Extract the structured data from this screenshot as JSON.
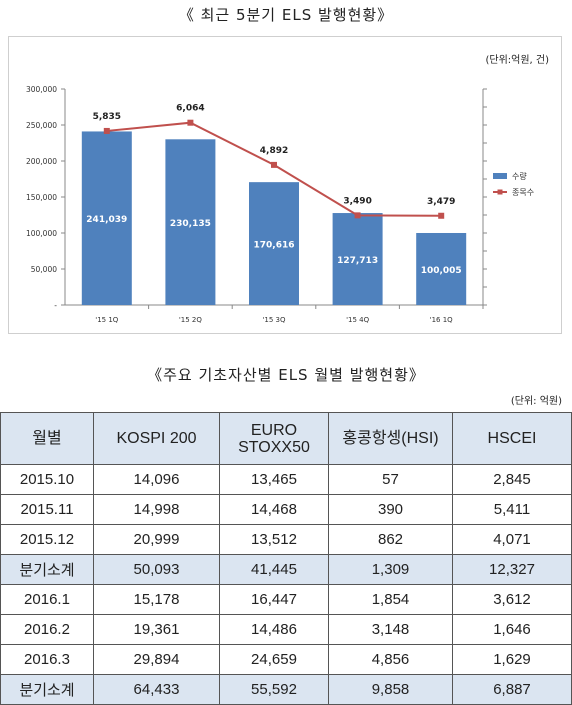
{
  "chart_title": "《 최근 5분기 ELS 발행현황》",
  "chart_unit": "(단위:억원, 건)",
  "chart_data": {
    "type": "bar",
    "categories": [
      "'15 1Q",
      "'15 2Q",
      "'15 3Q",
      "'15 4Q",
      "'16 1Q"
    ],
    "series": [
      {
        "name": "수량",
        "type": "bar",
        "values": [
          241039,
          230135,
          170616,
          127713,
          100005
        ],
        "labels": [
          "241,039",
          "230,135",
          "170,616",
          "127,713",
          "100,005"
        ],
        "color": "#4f81bd"
      },
      {
        "name": "종목수",
        "type": "line",
        "values": [
          5835,
          6064,
          4892,
          3490,
          3479
        ],
        "labels": [
          "5,835",
          "6,064",
          "4,892",
          "3,490",
          "3,479"
        ],
        "color": "#c0504d"
      }
    ],
    "ylim": [
      0,
      300000
    ],
    "yticks": [
      0,
      50000,
      100000,
      150000,
      200000,
      250000,
      300000
    ],
    "ytick_labels": [
      "-",
      "50,000",
      "100,000",
      "150,000",
      "200,000",
      "250,000",
      "300,000"
    ],
    "secondary_ylim": [
      1000,
      7000
    ],
    "legend_position": "right",
    "grid": false
  },
  "table_title": "《주요 기초자산별 ELS 월별 발행현황》",
  "table_unit": "(단위: 억원)",
  "table": {
    "headers": [
      "월별",
      "KOSPI 200",
      "EURO STOXX50",
      "홍콩항셍(HSI)",
      "HSCEI"
    ],
    "rows": [
      [
        "2015.10",
        "14,096",
        "13,465",
        "57",
        "2,845"
      ],
      [
        "2015.11",
        "14,998",
        "14,468",
        "390",
        "5,411"
      ],
      [
        "2015.12",
        "20,999",
        "13,512",
        "862",
        "4,071"
      ],
      [
        "분기소계",
        "50,093",
        "41,445",
        "1,309",
        "12,327"
      ],
      [
        "2016.1",
        "15,178",
        "16,447",
        "1,854",
        "3,612"
      ],
      [
        "2016.2",
        "19,361",
        "14,486",
        "3,148",
        "1,646"
      ],
      [
        "2016.3",
        "29,894",
        "24,659",
        "4,856",
        "1,629"
      ],
      [
        "분기소계",
        "64,433",
        "55,592",
        "9,858",
        "6,887"
      ]
    ]
  }
}
